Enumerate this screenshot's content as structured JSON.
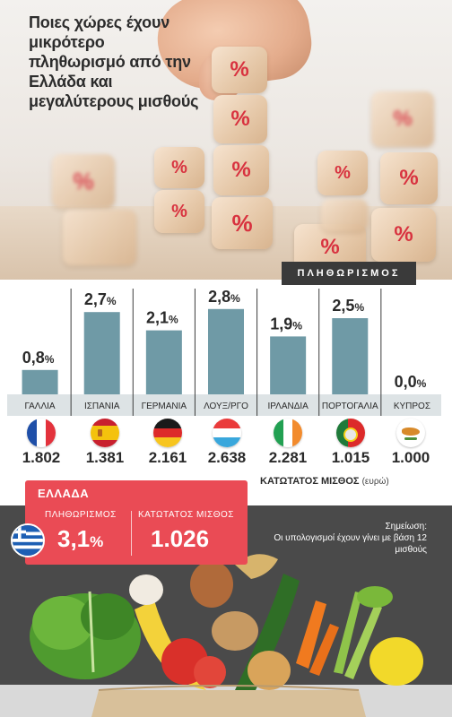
{
  "headline": "Ποιες χώρες έχουν μικρότερο πληθωρισμό από την Ελλάδα και μεγαλύτερους μισθούς",
  "inflation_header": "ΠΛΗΘΩΡΙΣΜΟΣ",
  "percent_sign": "%",
  "chart_data": {
    "type": "bar",
    "title": "ΠΛΗΘΩΡΙΣΜΟΣ",
    "unit": "%",
    "categories": [
      "ΓΑΛΛΙΑ",
      "ΙΣΠΑΝΙΑ",
      "ΓΕΡΜΑΝΙΑ",
      "ΛΟΥΞ/ΡΓΟ",
      "ΙΡΛΑΝΔΙΑ",
      "ΠΟΡΤΟΓΑΛΙΑ",
      "ΚΥΠΡΟΣ"
    ],
    "values": [
      0.8,
      2.7,
      2.1,
      2.8,
      1.9,
      2.5,
      0.0
    ],
    "value_labels": [
      "0,8",
      "2,7",
      "2,1",
      "2,8",
      "1,9",
      "2,5",
      "0,0"
    ],
    "ylim": [
      0,
      3.0
    ],
    "bar_color": "#6f9aa6"
  },
  "minimum_wage": {
    "caption": "ΚΑΤΩΤΑΤΟΣ ΜΙΣΘΟΣ",
    "unit": "(ευρώ)",
    "values": [
      "1.802",
      "1.381",
      "2.161",
      "2.638",
      "2.281",
      "1.015",
      "1.000"
    ]
  },
  "flags": [
    "france-flag-icon",
    "spain-flag-icon",
    "germany-flag-icon",
    "luxembourg-flag-icon",
    "ireland-flag-icon",
    "portugal-flag-icon",
    "cyprus-flag-icon"
  ],
  "greece": {
    "title": "ΕΛΛΑΔΑ",
    "inflation_label": "ΠΛΗΘΩΡΙΣΜΟΣ",
    "inflation_value": "3,1",
    "inflation_unit": "%",
    "wage_label": "ΚΑΤΩΤΑΤΟΣ ΜΙΣΘΟΣ",
    "wage_value": "1.026"
  },
  "note": {
    "title": "Σημείωση:",
    "text": "Οι υπολογισμοί έχουν γίνει με βάση 12 μισθούς"
  },
  "colors": {
    "accent_red": "#ea4b55",
    "bar_teal": "#6f9aa6",
    "dark_band": "#4a4a4a",
    "label_strip": "#dde3e5"
  }
}
